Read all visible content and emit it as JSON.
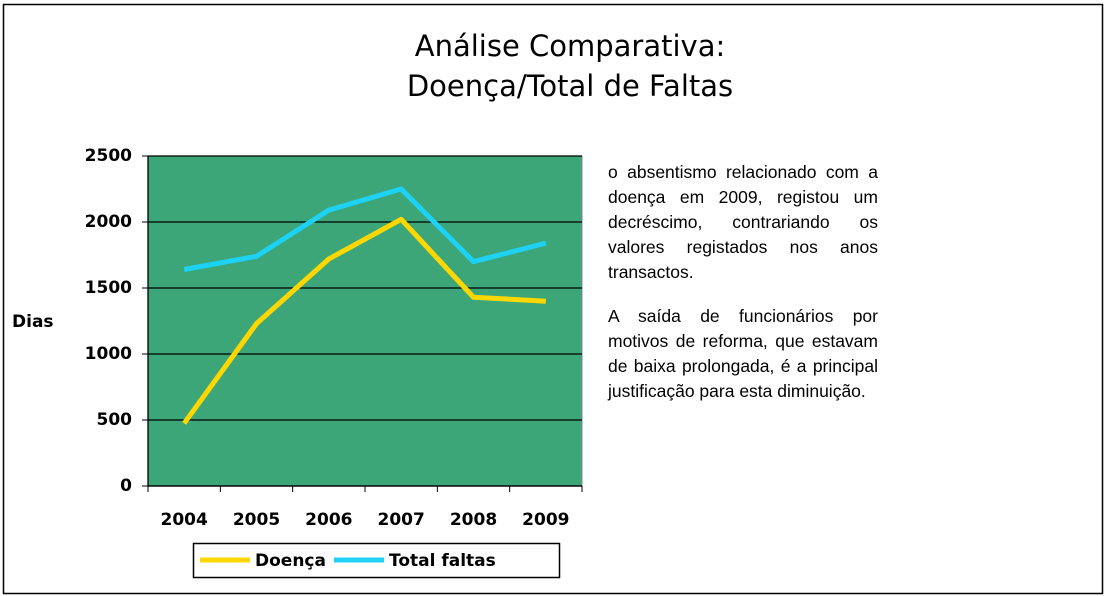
{
  "chart_data": {
    "type": "line",
    "title": [
      "Análise Comparativa:",
      "Doença/Total de Faltas"
    ],
    "y_label": "Dias",
    "categories": [
      "2004",
      "2005",
      "2006",
      "2007",
      "2008",
      "2009"
    ],
    "series": [
      {
        "name": "Doença",
        "color": "#ffd700",
        "values": [
          475,
          1230,
          1720,
          2020,
          1430,
          1400
        ]
      },
      {
        "name": "Total faltas",
        "color": "#1ed2f5",
        "values": [
          1640,
          1740,
          2090,
          2250,
          1700,
          1840
        ]
      }
    ],
    "ylim": [
      0,
      2500
    ],
    "yticks": [
      0,
      500,
      1000,
      1500,
      2000,
      2500
    ],
    "grid": true,
    "plot_background": "#3ca678",
    "legend": "bottom"
  },
  "notes": [
    "o absentismo relacionado com a doença em 2009, registou um decréscimo, contrariando os valores registados nos anos transactos.",
    "A saída de funcionários por motivos de reforma, que estavam de baixa prolongada, é a principal justificação para esta diminuição."
  ]
}
